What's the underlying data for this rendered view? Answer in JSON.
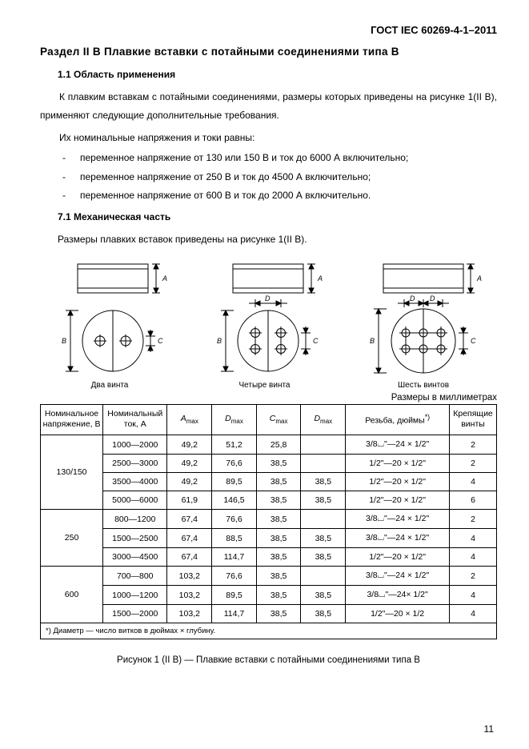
{
  "doc_id": "ГОСТ IEC 60269-4-1–2011",
  "section_title": "Раздел II В Плавкие вставки с потайными соединениями типа В",
  "sub1_title": "1.1 Область применения",
  "p1": "К плавким вставкам с потайными соединениями, размеры которых приведены на рисунке 1(II В), применяют следующие дополнительные требования.",
  "p2": "Их номинальные напряжения и токи равны:",
  "bullets": [
    "переменное напряжение от 130 или 150 В и ток до 6000 А включительно;",
    "переменное напряжение от 250 В и ток до 4500 А включительно;",
    "переменное напряжение от 600 В и ток до 2000 А включительно."
  ],
  "sub2_title": "7.1 Механическая часть",
  "p3": "Размеры плавких вставок приведены на рисунке 1(II В).",
  "fig_captions": [
    "Два винта",
    "Четыре винта",
    "Шесть винтов"
  ],
  "units_note": "Размеры в миллиметрах",
  "table": {
    "headers": {
      "voltage": "Номинальное напряжение, В",
      "current": "Номинальный ток, А",
      "a_max": "A",
      "d_max1": "D",
      "c_max": "C",
      "d_max2": "D",
      "thread": "Резьба, дюймы",
      "screws": "Крепящие винты"
    },
    "groups": [
      {
        "voltage": "130/150",
        "rows": [
          {
            "current": "1000—2000",
            "a": "49,2",
            "d1": "51,2",
            "c": "25,8",
            "d2": "",
            "thread": "3/8⌴\"—24 × 1/2\"",
            "scr": "2"
          },
          {
            "current": "2500—3000",
            "a": "49,2",
            "d1": "76,6",
            "c": "38,5",
            "d2": "",
            "thread": "1/2\"—20 × 1/2\"",
            "scr": "2"
          },
          {
            "current": "3500—4000",
            "a": "49,2",
            "d1": "89,5",
            "c": "38,5",
            "d2": "38,5",
            "thread": "1/2\"—20 × 1/2\"",
            "scr": "4"
          },
          {
            "current": "5000—6000",
            "a": "61,9",
            "d1": "146,5",
            "c": "38,5",
            "d2": "38,5",
            "thread": "1/2\"—20 × 1/2\"",
            "scr": "6"
          }
        ]
      },
      {
        "voltage": "250",
        "rows": [
          {
            "current": "800—1200",
            "a": "67,4",
            "d1": "76,6",
            "c": "38,5",
            "d2": "",
            "thread": "3/8⌴\"—24 × 1/2\"",
            "scr": "2"
          },
          {
            "current": "1500—2500",
            "a": "67,4",
            "d1": "88,5",
            "c": "38,5",
            "d2": "38,5",
            "thread": "3/8⌴\"—24 × 1/2\"",
            "scr": "4"
          },
          {
            "current": "3000—4500",
            "a": "67,4",
            "d1": "114,7",
            "c": "38,5",
            "d2": "38,5",
            "thread": "1/2\"—20 × 1/2\"",
            "scr": "4"
          }
        ]
      },
      {
        "voltage": "600",
        "rows": [
          {
            "current": "700—800",
            "a": "103,2",
            "d1": "76,6",
            "c": "38,5",
            "d2": "",
            "thread": "3/8⌴\"—24 × 1/2\"",
            "scr": "2"
          },
          {
            "current": "1000—1200",
            "a": "103,2",
            "d1": "89,5",
            "c": "38,5",
            "d2": "38,5",
            "thread": "3/8⌴\"—24× 1/2\"",
            "scr": "4"
          },
          {
            "current": "1500—2000",
            "a": "103,2",
            "d1": "114,7",
            "c": "38,5",
            "d2": "38,5",
            "thread": "1/2\"—20 × 1/2",
            "scr": "4"
          }
        ]
      }
    ],
    "footnote": "*) Диаметр — число витков в дюймах × глубину."
  },
  "figure_caption": "Рисунок 1 (II В) — Плавкие вставки с потайными соединениями типа В",
  "page_number": "11",
  "colors": {
    "text": "#000000",
    "bg": "#ffffff",
    "line": "#000000"
  }
}
